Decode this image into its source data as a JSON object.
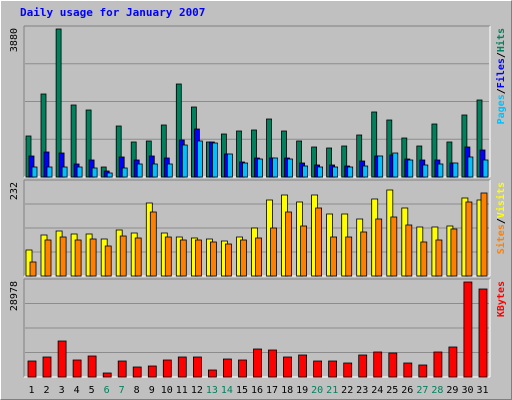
{
  "title": "Daily usage for January 2007",
  "colors": {
    "hits": "#00805c",
    "files": "#0000ff",
    "pages": "#00c0ff",
    "visits": "#ffff00",
    "sites": "#ff8000",
    "kbytes": "#ff0000",
    "weekend_label": "#00805c",
    "weekday_label": "#000000"
  },
  "chart_data": [
    {
      "type": "bar",
      "panel": "hits-files-pages",
      "ymax_label": "3880",
      "ylim": [
        0,
        3880
      ],
      "categories": [
        "1",
        "2",
        "3",
        "4",
        "5",
        "6",
        "7",
        "8",
        "9",
        "10",
        "11",
        "12",
        "13",
        "14",
        "15",
        "16",
        "17",
        "18",
        "19",
        "20",
        "21",
        "22",
        "23",
        "24",
        "25",
        "26",
        "27",
        "28",
        "29",
        "30",
        "31"
      ],
      "weekend_days": [
        "6",
        "7",
        "13",
        "14",
        "20",
        "21",
        "27",
        "28"
      ],
      "legend": [
        "Pages",
        "Files",
        "Hits"
      ],
      "series": [
        {
          "name": "Hits",
          "values": [
            1070,
            2170,
            3880,
            1880,
            1750,
            250,
            1330,
            930,
            950,
            1370,
            2450,
            1840,
            930,
            1140,
            1200,
            1230,
            1530,
            1210,
            940,
            790,
            770,
            810,
            1100,
            1710,
            1500,
            1020,
            800,
            1380,
            910,
            1630,
            2030
          ]
        },
        {
          "name": "Files",
          "values": [
            540,
            650,
            620,
            350,
            440,
            150,
            530,
            440,
            540,
            500,
            980,
            1250,
            920,
            600,
            400,
            490,
            510,
            500,
            380,
            320,
            320,
            300,
            410,
            550,
            580,
            460,
            450,
            440,
            380,
            790,
            710
          ]
        },
        {
          "name": "Pages",
          "values": [
            250,
            260,
            250,
            260,
            240,
            100,
            240,
            330,
            330,
            330,
            830,
            950,
            890,
            590,
            380,
            460,
            500,
            470,
            300,
            250,
            270,
            250,
            300,
            540,
            620,
            440,
            310,
            330,
            380,
            520,
            450
          ]
        }
      ]
    },
    {
      "type": "bar",
      "panel": "visits-sites",
      "ymax_label": "232",
      "ylim": [
        0,
        232
      ],
      "categories": [
        "1",
        "2",
        "3",
        "4",
        "5",
        "6",
        "7",
        "8",
        "9",
        "10",
        "11",
        "12",
        "13",
        "14",
        "15",
        "16",
        "17",
        "18",
        "19",
        "20",
        "21",
        "22",
        "23",
        "24",
        "25",
        "26",
        "27",
        "28",
        "29",
        "30",
        "31"
      ],
      "legend": [
        "Sites",
        "Visits"
      ],
      "series": [
        {
          "name": "Visits",
          "values": [
            65,
            102,
            112,
            105,
            104,
            92,
            114,
            108,
            182,
            108,
            98,
            94,
            93,
            88,
            98,
            120,
            190,
            202,
            185,
            202,
            155,
            155,
            142,
            192,
            215,
            170,
            122,
            122,
            125,
            195,
            190
          ]
        },
        {
          "name": "Sites",
          "values": [
            36,
            90,
            98,
            90,
            92,
            75,
            100,
            96,
            160,
            98,
            90,
            90,
            85,
            80,
            90,
            94,
            120,
            160,
            125,
            170,
            98,
            98,
            110,
            142,
            148,
            128,
            85,
            90,
            118,
            185,
            207
          ]
        }
      ]
    },
    {
      "type": "bar",
      "panel": "kbytes",
      "ymax_label": "28978",
      "ylim": [
        0,
        28978
      ],
      "categories": [
        "1",
        "2",
        "3",
        "4",
        "5",
        "6",
        "7",
        "8",
        "9",
        "10",
        "11",
        "12",
        "13",
        "14",
        "15",
        "16",
        "17",
        "18",
        "19",
        "20",
        "21",
        "22",
        "23",
        "24",
        "25",
        "26",
        "27",
        "28",
        "29",
        "30",
        "31"
      ],
      "legend": [
        "KBytes"
      ],
      "series": [
        {
          "name": "KBytes",
          "values": [
            5000,
            6100,
            11000,
            5100,
            6400,
            1200,
            4800,
            3000,
            3500,
            5300,
            6200,
            6200,
            2100,
            5500,
            5100,
            8500,
            8200,
            6200,
            6700,
            4800,
            4800,
            4300,
            6800,
            7500,
            7400,
            4200,
            3800,
            7700,
            9000,
            28978,
            26900
          ]
        }
      ]
    }
  ]
}
